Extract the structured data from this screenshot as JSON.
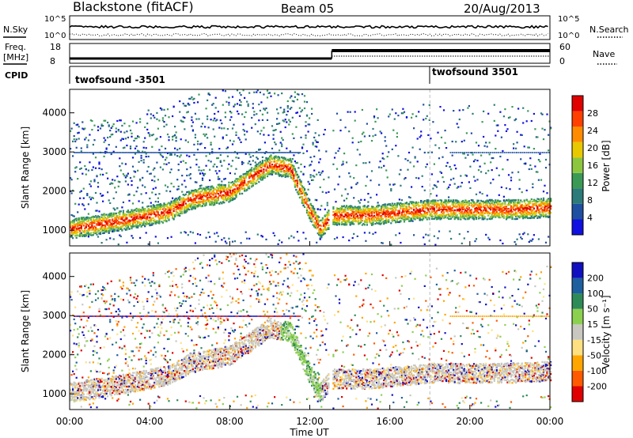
{
  "header": {
    "station": "Blackstone (fitACF)",
    "beam": "Beam 05",
    "date": "20/Aug/2013"
  },
  "summary_labels": {
    "nsky": "N.Sky",
    "nsearch": "N.Search",
    "freq_line1": "Freq.",
    "freq_line2": "[MHz]",
    "nave": "Nave",
    "cpid": "CPID"
  },
  "summary_ticks": {
    "noise_top": "10^5",
    "noise_bottom": "10^0",
    "noise_right_top": "10^5",
    "noise_right_bottom": "10^0",
    "freq_top": "18",
    "freq_bottom": "8",
    "nave_top": "60",
    "nave_bottom": "0"
  },
  "cpid_segments": [
    {
      "label": "twofsound -3501",
      "start_hour": 0
    },
    {
      "label": "twofsound 3501",
      "start_hour": 18
    }
  ],
  "colors": {
    "power_scale": [
      "#1010e0",
      "#1f4fa0",
      "#2d7a7a",
      "#3a9a55",
      "#8cc63f",
      "#e8c800",
      "#ff8c00",
      "#ff4000",
      "#e00000"
    ],
    "velocity_scale": [
      "#e00000",
      "#ff5a00",
      "#ffa500",
      "#ffe080",
      "#c8c8c0",
      "#8cd050",
      "#2e8b57",
      "#1e5fa0",
      "#1010c0"
    ]
  },
  "chart_data": [
    {
      "type": "heatmap",
      "panel": "power",
      "xlabel": "",
      "ylabel": "Slant Range [km]",
      "xlim_hours": [
        0,
        24
      ],
      "ylim": [
        600,
        4600
      ],
      "yticks": [
        "1000",
        "2000",
        "3000",
        "4000"
      ],
      "colorbar": {
        "label": "Power [dB]",
        "ticks": [
          "4",
          "8",
          "12",
          "16",
          "20",
          "24",
          "28"
        ],
        "range": [
          0,
          32
        ]
      },
      "main_echo_band_km": [
        [
          0,
          1050
        ],
        [
          3,
          1300
        ],
        [
          5,
          1500
        ],
        [
          6,
          1800
        ],
        [
          8,
          2000
        ],
        [
          10,
          2700
        ],
        [
          11,
          2600
        ],
        [
          12,
          1500
        ],
        [
          12.5,
          1050
        ],
        [
          13.1,
          1400
        ],
        [
          15,
          1400
        ],
        [
          18,
          1550
        ],
        [
          22,
          1550
        ],
        [
          24,
          1600
        ]
      ]
    },
    {
      "type": "heatmap",
      "panel": "velocity",
      "xlabel": "Time UT",
      "ylabel": "Slant Range [km]",
      "xlim_hours": [
        0,
        24
      ],
      "ylim": [
        600,
        4600
      ],
      "yticks": [
        "1000",
        "2000",
        "3000",
        "4000"
      ],
      "xticks": [
        "00:00",
        "04:00",
        "08:00",
        "12:00",
        "16:00",
        "20:00",
        "00:00"
      ],
      "colorbar": {
        "label": "Velocity [m s⁻¹]",
        "ticks": [
          "200",
          "100",
          "50",
          "15",
          "-15",
          "-50",
          "-100",
          "-200"
        ],
        "range": [
          -250,
          250
        ]
      }
    }
  ]
}
